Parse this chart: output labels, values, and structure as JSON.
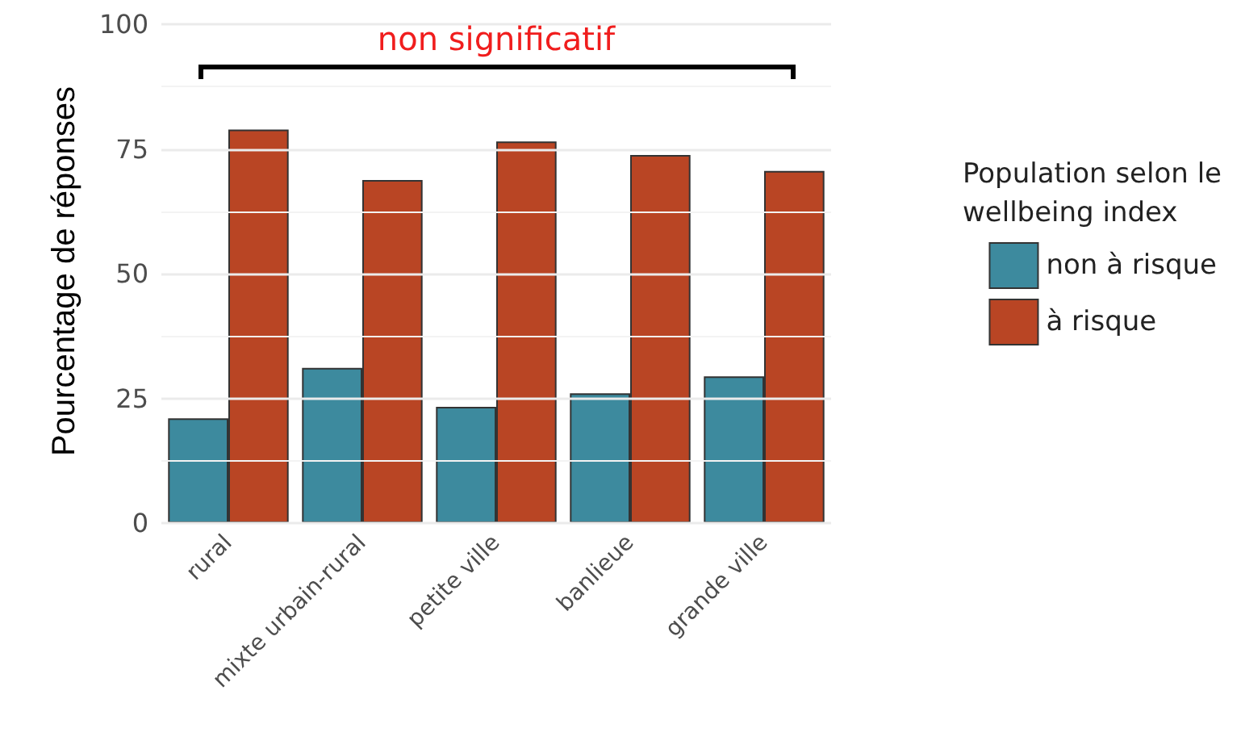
{
  "chart_data": {
    "type": "bar",
    "ylabel": "Pourcentage de réponses",
    "legend_title": "Population selon le\nwellbeing index",
    "categories": [
      "rural",
      "mixte urbain-rural",
      "petite ville",
      "banlieue",
      "grande ville"
    ],
    "series": [
      {
        "name": "non à risque",
        "color": "#3d8a9e",
        "values": [
          21.0,
          31.1,
          23.3,
          26.0,
          29.4
        ]
      },
      {
        "name": "à risque",
        "color": "#b94524",
        "values": [
          78.9,
          68.8,
          76.5,
          73.8,
          70.6
        ]
      }
    ],
    "ylim": [
      0,
      101
    ],
    "yticks": [
      0,
      {
        "value": 12.5,
        "label": null
      },
      25,
      {
        "value": 37.5,
        "label": null
      },
      50,
      {
        "value": 62.5,
        "label": null
      },
      75,
      {
        "value": 87.5,
        "label": null
      },
      100
    ],
    "grid": "y",
    "legend": "right",
    "annotations": [
      "non significatif"
    ]
  }
}
